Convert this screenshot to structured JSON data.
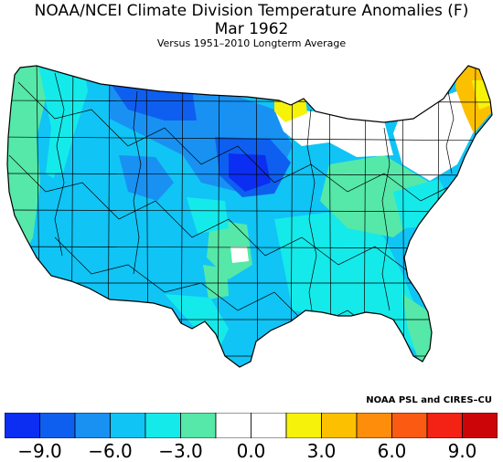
{
  "title": "NOAA/NCEI Climate Division Temperature Anomalies (F)",
  "subtitle": "Mar 1962",
  "baseline": "Versus 1951–2010 Longterm Average",
  "credit": "NOAA PSL and CIRES–CU",
  "colorbar": {
    "colors": [
      "#0b2ef2",
      "#0e5ff0",
      "#1891f3",
      "#10c4f5",
      "#15eaea",
      "#55e8a8",
      "#ffffff",
      "#ffffff",
      "#f6f20a",
      "#fdc000",
      "#fd8d0a",
      "#fb5a12",
      "#f32214",
      "#cc0508"
    ],
    "tick_labels": [
      "−9.0",
      "−6.0",
      "−3.0",
      "0.0",
      "3.0",
      "6.0",
      "9.0"
    ]
  }
}
